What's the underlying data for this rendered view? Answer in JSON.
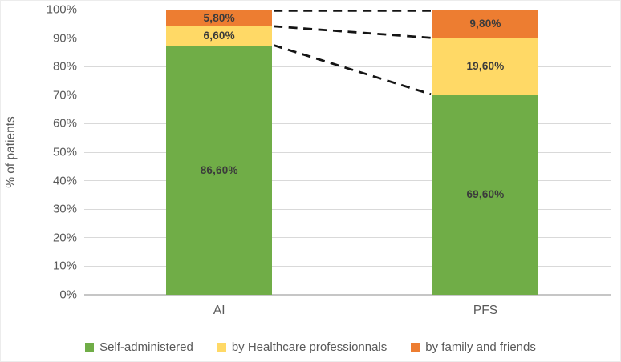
{
  "chart_data": {
    "type": "bar",
    "stacking": "percent",
    "title": "",
    "xlabel": "",
    "ylabel": "% of patients",
    "categories": [
      "AI",
      "PFS"
    ],
    "series": [
      {
        "name": "Self-administered",
        "color": "#70AD47",
        "values": [
          86.6,
          69.6
        ],
        "labels": [
          "86,60%",
          "69,60%"
        ]
      },
      {
        "name": "by Healthcare professionnals",
        "color": "#FFD966",
        "values": [
          6.6,
          19.6
        ],
        "labels": [
          "6,60%",
          "19,60%"
        ]
      },
      {
        "name": "by family and friends",
        "color": "#ED7D31",
        "values": [
          5.8,
          9.8
        ],
        "labels": [
          "5,80%",
          "9,80%"
        ]
      }
    ],
    "y_ticks": [
      "0%",
      "10%",
      "20%",
      "30%",
      "40%",
      "50%",
      "60%",
      "70%",
      "80%",
      "90%",
      "100%"
    ],
    "ylim": [
      0,
      100
    ],
    "grid": true,
    "legend_position": "bottom",
    "connector_lines": {
      "style": "dashed",
      "color": "#141414"
    }
  },
  "colors": {
    "background": "#ffffff",
    "gridline": "#d9d9d9",
    "axisline": "#c6c6c6",
    "tick_text": "#595959",
    "segment_label_text": "#3b3b3b"
  }
}
